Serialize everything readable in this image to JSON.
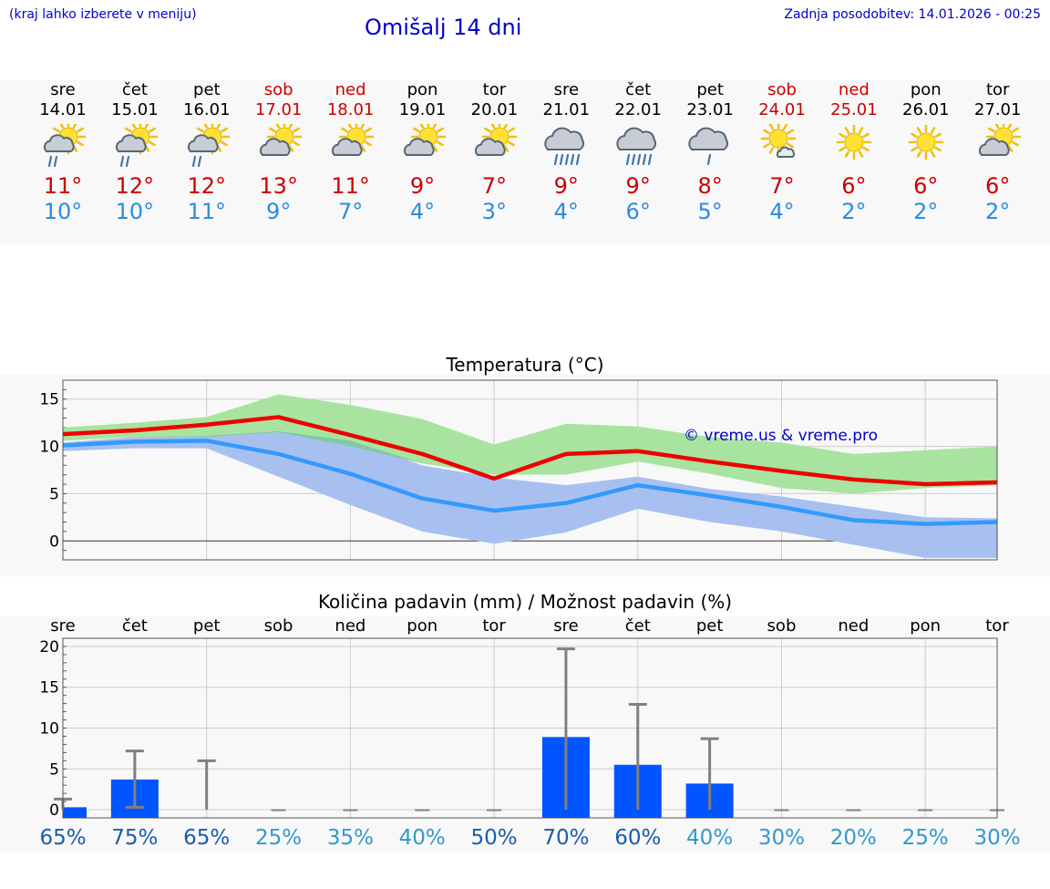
{
  "header": {
    "note": "(kraj lahko izberete v meniju)",
    "title": "Omišalj 14 dni",
    "updated": "Zadnja posodobitev: 14.01.2026 - 00:25"
  },
  "days": [
    {
      "name": "sre",
      "date": "14.01",
      "weekend": false,
      "icon": "sun-cloud-rain-icon",
      "max": "11°",
      "min": "10°"
    },
    {
      "name": "čet",
      "date": "15.01",
      "weekend": false,
      "icon": "sun-cloud-rain-icon",
      "max": "12°",
      "min": "10°"
    },
    {
      "name": "pet",
      "date": "16.01",
      "weekend": false,
      "icon": "sun-cloud-rain-icon",
      "max": "12°",
      "min": "11°"
    },
    {
      "name": "sob",
      "date": "17.01",
      "weekend": true,
      "icon": "sun-cloud-icon",
      "max": "13°",
      "min": "9°"
    },
    {
      "name": "ned",
      "date": "18.01",
      "weekend": true,
      "icon": "sun-cloud-icon",
      "max": "11°",
      "min": "7°"
    },
    {
      "name": "pon",
      "date": "19.01",
      "weekend": false,
      "icon": "sun-cloud-icon",
      "max": "9°",
      "min": "4°"
    },
    {
      "name": "tor",
      "date": "20.01",
      "weekend": false,
      "icon": "sun-cloud-icon",
      "max": "7°",
      "min": "3°"
    },
    {
      "name": "sre",
      "date": "21.01",
      "weekend": false,
      "icon": "cloud-rain-icon",
      "max": "9°",
      "min": "4°"
    },
    {
      "name": "čet",
      "date": "22.01",
      "weekend": false,
      "icon": "cloud-rain-icon",
      "max": "9°",
      "min": "6°"
    },
    {
      "name": "pet",
      "date": "23.01",
      "weekend": false,
      "icon": "cloud-rain-light-icon",
      "max": "8°",
      "min": "5°"
    },
    {
      "name": "sob",
      "date": "24.01",
      "weekend": true,
      "icon": "sun-small-cloud-icon",
      "max": "7°",
      "min": "4°"
    },
    {
      "name": "ned",
      "date": "25.01",
      "weekend": true,
      "icon": "sun-icon",
      "max": "6°",
      "min": "2°"
    },
    {
      "name": "pon",
      "date": "26.01",
      "weekend": false,
      "icon": "sun-icon",
      "max": "6°",
      "min": "2°"
    },
    {
      "name": "tor",
      "date": "27.01",
      "weekend": false,
      "icon": "sun-cloud-icon",
      "max": "6°",
      "min": "2°"
    }
  ],
  "colors": {
    "max": "#cc0000",
    "min": "#2b8ce0",
    "max_line": "#ee0000",
    "min_line": "#3399ff",
    "max_band": "#a8e4a0",
    "min_band": "#a8c0f0",
    "overlap_band": "#80c8a8",
    "bar": "#0055ff",
    "error": "#808080",
    "prob_dark": "#1a5cb0",
    "prob_light": "#3399cc"
  },
  "credit": "© vreme.us & vreme.pro",
  "chart_data": [
    {
      "type": "line",
      "title": "Temperatura (°C)",
      "ylim": [
        -2,
        17
      ],
      "yticks": [
        0,
        5,
        10,
        15
      ],
      "x": [
        0,
        1,
        2,
        3,
        4,
        5,
        6,
        7,
        8,
        9,
        10,
        11,
        12,
        13
      ],
      "series": [
        {
          "name": "max",
          "values": [
            11.3,
            11.7,
            12.3,
            13.1,
            11.2,
            9.2,
            6.6,
            9.2,
            9.5,
            8.4,
            7.4,
            6.5,
            6.0,
            6.2
          ]
        },
        {
          "name": "min",
          "values": [
            10.1,
            10.5,
            10.6,
            9.2,
            7.1,
            4.5,
            3.2,
            4.0,
            5.9,
            4.8,
            3.6,
            2.2,
            1.8,
            2.0
          ]
        }
      ],
      "bands": [
        {
          "name": "max_range",
          "lower": [
            10.6,
            11.0,
            11.0,
            11.5,
            10.0,
            8.2,
            7.0,
            7.0,
            8.4,
            7.1,
            5.6,
            5.0,
            5.6,
            5.9
          ],
          "upper": [
            12.0,
            12.5,
            13.1,
            15.5,
            14.4,
            12.9,
            10.2,
            12.4,
            12.1,
            11.0,
            10.4,
            9.2,
            9.6,
            10.0
          ]
        },
        {
          "name": "min_range",
          "lower": [
            9.5,
            9.8,
            9.8,
            6.8,
            3.8,
            1.0,
            -0.3,
            0.9,
            3.4,
            2.0,
            1.0,
            -0.4,
            -1.8,
            -1.8
          ],
          "upper": [
            10.4,
            11.0,
            11.1,
            11.6,
            10.6,
            8.0,
            6.7,
            5.9,
            6.8,
            5.5,
            4.7,
            3.6,
            2.5,
            2.4
          ]
        }
      ]
    },
    {
      "type": "bar",
      "title": "Količina padavin (mm) / Možnost padavin (%)",
      "categories": [
        "sre",
        "čet",
        "pet",
        "sob",
        "ned",
        "pon",
        "tor",
        "sre",
        "čet",
        "pet",
        "sob",
        "ned",
        "pon",
        "tor"
      ],
      "ylim": [
        -1,
        21
      ],
      "yticks": [
        0,
        5,
        10,
        15,
        20
      ],
      "values": [
        0.3,
        3.7,
        0,
        0,
        0,
        0,
        0,
        8.9,
        5.5,
        3.2,
        0,
        0,
        0,
        0
      ],
      "error_low": [
        0,
        0.3,
        0,
        0,
        0,
        0,
        0,
        0,
        0,
        0,
        0,
        0,
        0,
        0
      ],
      "error_high": [
        1.3,
        7.2,
        6.0,
        0,
        0,
        0,
        0,
        19.7,
        12.9,
        8.7,
        0,
        0,
        0,
        0
      ],
      "probability": [
        "65%",
        "75%",
        "65%",
        "25%",
        "35%",
        "40%",
        "50%",
        "70%",
        "60%",
        "40%",
        "30%",
        "20%",
        "25%",
        "30%"
      ]
    }
  ]
}
